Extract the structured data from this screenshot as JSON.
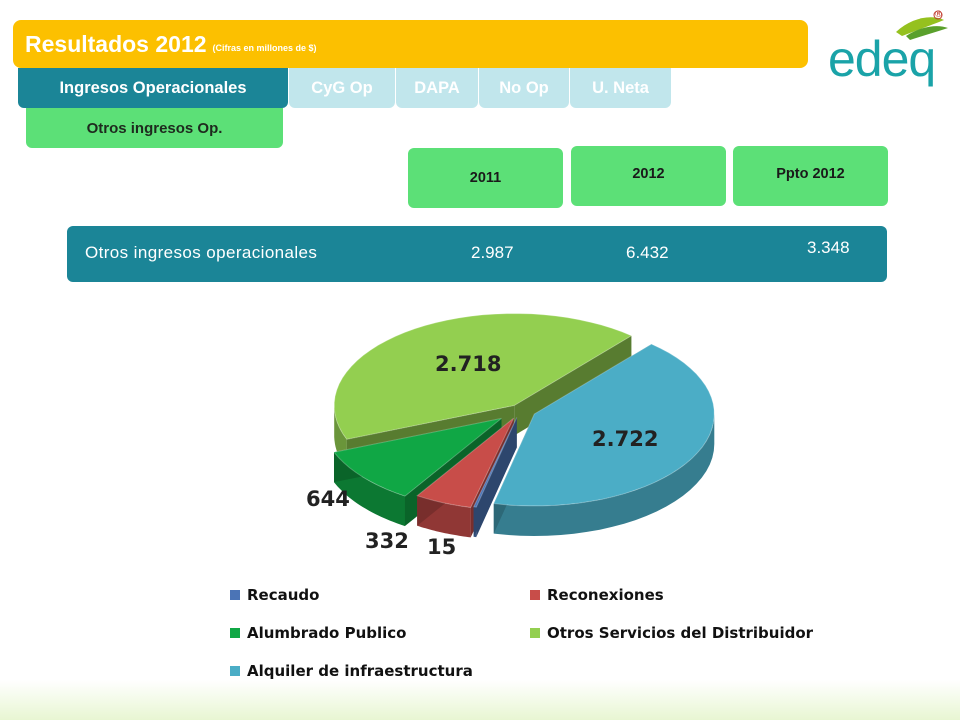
{
  "header": {
    "title": "Resultados 2012",
    "subtitle": "(Cifras en millones de $)"
  },
  "logo": {
    "text": "edeq",
    "mark": "®"
  },
  "tabs": [
    {
      "label": "Ingresos Operacionales",
      "active": true
    },
    {
      "label": "CyG Op",
      "active": false
    },
    {
      "label": "DAPA",
      "active": false
    },
    {
      "label": "No Op",
      "active": false
    },
    {
      "label": "U. Neta",
      "active": false
    }
  ],
  "subtab": {
    "label": "Otros ingresos Op."
  },
  "table": {
    "columns": [
      "2011",
      "2012",
      "Ppto 2012"
    ],
    "row": {
      "label": "Otros ingresos operacionales",
      "values": [
        "2.987",
        "6.432",
        "3.348"
      ]
    }
  },
  "colors": {
    "accent": "#fcc000",
    "teal": "#1b8597",
    "green": "#5ce077"
  },
  "chart_data": {
    "type": "pie",
    "categories": [
      "Recaudo",
      "Reconexiones",
      "Alumbrado Publico",
      "Otros Servicios del Distribuidor",
      "Alquiler de infraestructura"
    ],
    "values": [
      15,
      332,
      644,
      2718,
      2722
    ],
    "labels": [
      "15",
      "332",
      "644",
      "2.718",
      "2.722"
    ],
    "colors": [
      "#4b74b6",
      "#c84d49",
      "#10a745",
      "#93cf50",
      "#4badc6"
    ],
    "legend_position": "bottom"
  }
}
